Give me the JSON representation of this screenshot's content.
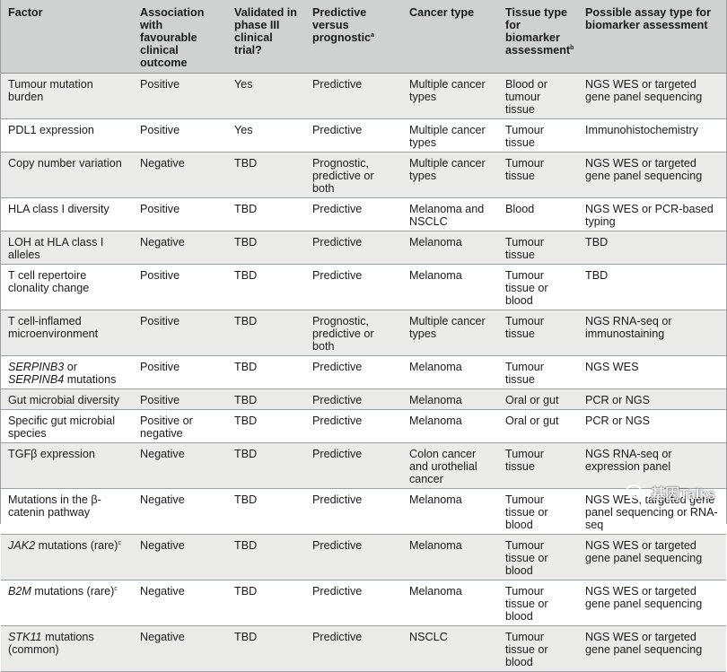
{
  "headers": {
    "factor": "Factor",
    "association": "Association with favourable clinical outcome",
    "validated": "Validated in phase III clinical trial?",
    "predictive": "Predictive versus prognostic",
    "predictive_sup": "a",
    "cancer": "Cancer type",
    "tissue": "Tissue type for biomarker assessment",
    "tissue_sup": "b",
    "assay": "Possible assay type for biomarker assessment"
  },
  "rows": [
    {
      "factor": "Tumour mutation burden",
      "association": "Positive",
      "validated": "Yes",
      "predictive": "Predictive",
      "cancer": "Multiple cancer types",
      "tissue": "Blood or tumour tissue",
      "assay": "NGS WES or targeted gene panel sequencing"
    },
    {
      "factor": "PDL1 expression",
      "association": "Positive",
      "validated": "Yes",
      "predictive": "Predictive",
      "cancer": " Multiple cancer types",
      "tissue": "Tumour tissue",
      "assay": "Immunohistochemistry"
    },
    {
      "factor": "Copy number variation",
      "association": "Negative",
      "validated": "TBD",
      "predictive": "Prognostic, predictive or both",
      "cancer": "Multiple cancer types",
      "tissue": "Tumour tissue",
      "assay": "NGS WES or targeted gene panel sequencing"
    },
    {
      "factor": "HLA class I diversity",
      "association": "Positive",
      "validated": "TBD",
      "predictive": "Predictive",
      "cancer": "Melanoma and NSCLC",
      "tissue": "Blood",
      "assay": "NGS WES or PCR-based typing"
    },
    {
      "factor": "LOH at HLA class I alleles",
      "association": "Negative",
      "validated": "TBD",
      "predictive": "Predictive",
      "cancer": "Melanoma",
      "tissue": "Tumour tissue",
      "assay": "TBD"
    },
    {
      "factor": "T cell repertoire clonality change",
      "association": "Positive",
      "validated": "TBD",
      "predictive": "Predictive",
      "cancer": "Melanoma",
      "tissue": "Tumour tissue or blood",
      "assay": " TBD"
    },
    {
      "factor": "T cell-inflamed microenvironment",
      "association": "Positive",
      "validated": "TBD",
      "predictive": "Prognostic, predictive or both",
      "cancer": "Multiple cancer types",
      "tissue": "Tumour tissue",
      "assay": "NGS RNA-seq or immunostaining"
    },
    {
      "factor": "SERPINB3 or SERPINB4 mutations",
      "association": "Positive",
      "validated": "TBD",
      "predictive": "Predictive",
      "cancer": "Melanoma",
      "tissue": "Tumour tissue",
      "assay": "NGS WES"
    },
    {
      "factor": "Gut microbial diversity",
      "association": "Positive",
      "validated": "TBD",
      "predictive": "Predictive",
      "cancer": "Melanoma",
      "tissue": "Oral or gut",
      "assay": "PCR or NGS"
    },
    {
      "factor": "Specific gut microbial species",
      "association": "Positive or negative",
      "validated": "TBD",
      "predictive": "Predictive",
      "cancer": "Melanoma",
      "tissue": "Oral or gut",
      "assay": "PCR or NGS"
    },
    {
      "factor": "TGFβ expression",
      "association": "Negative",
      "validated": "TBD",
      "predictive": "Predictive",
      "cancer": "Colon cancer and urothelial cancer",
      "tissue": "Tumour tissue",
      "assay": "NGS RNA-seq or expression panel"
    },
    {
      "factor": "Mutations in the β-catenin pathway",
      "association": "Negative",
      "validated": "TBD",
      "predictive": "Predictive",
      "cancer": "Melanoma",
      "tissue": "Tumour tissue or blood",
      "assay": "NGS WES, targeted gene panel sequencing or RNA-seq"
    },
    {
      "factor": "JAK2 mutations (rare)",
      "factor_sup": "c",
      "association": "Negative",
      "validated": "TBD",
      "predictive": "Predictive",
      "cancer": "Melanoma",
      "tissue": "Tumour tissue or blood",
      "assay": "NGS WES or targeted gene panel sequencing"
    },
    {
      "factor": "B2M mutations (rare)",
      "factor_sup": "c",
      "association": "Negative",
      "validated": "TBD",
      "predictive": "Predictive",
      "cancer": "Melanoma",
      "tissue": "Tumour tissue or blood",
      "assay": "NGS WES or targeted gene panel sequencing"
    },
    {
      "factor": "STK11 mutations (common)",
      "association": "Negative",
      "validated": "TBD",
      "predictive": "Predictive",
      "cancer": "NSCLC",
      "tissue": "Tumour tissue or blood",
      "assay": "NGS WES or targeted gene panel sequencing"
    }
  ],
  "watermark": {
    "text": "基因Talks",
    "icon": "wechat-icon"
  }
}
